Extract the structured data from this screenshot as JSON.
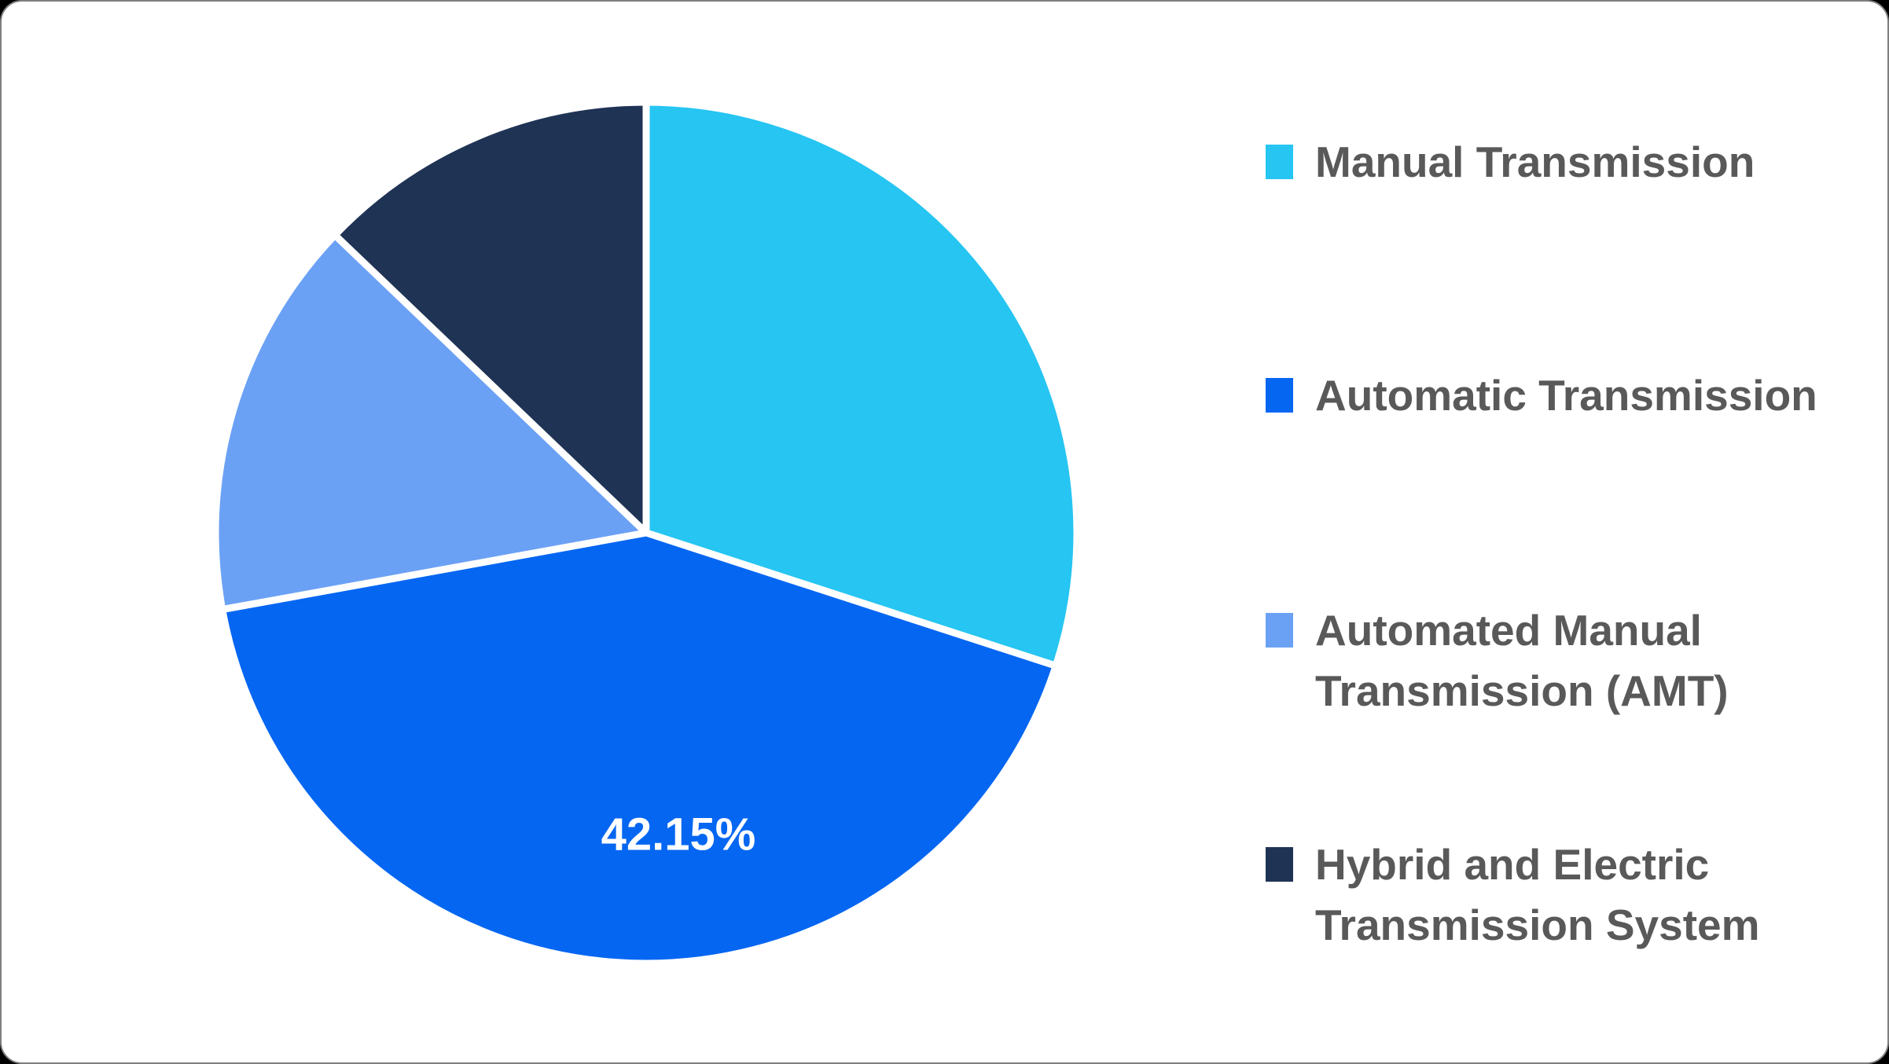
{
  "chart_data": {
    "type": "pie",
    "title": "",
    "categories": [
      "Manual Transmission",
      "Automatic Transmission",
      "Automated Manual Transmission (AMT)",
      "Hybrid and Electric Transmission System"
    ],
    "values": [
      30,
      42.15,
      15,
      12.85
    ],
    "unit": "percent",
    "colors": [
      "#26C5F2",
      "#0566F2",
      "#6BA1F5",
      "#1F3355"
    ],
    "data_labels": [
      "",
      "42.15%",
      "",
      ""
    ],
    "start_angle_deg": 0,
    "direction": "clockwise",
    "legend_position": "right",
    "slice_border_color": "#FFFFFF",
    "data_label_color": "#FFFFFF"
  },
  "legend": {
    "text_color": "#595959",
    "items": [
      {
        "line1": "Manual Transmission",
        "line2": ""
      },
      {
        "line1": "Automatic Transmission",
        "line2": ""
      },
      {
        "line1": "Automated Manual",
        "line2": "Transmission (AMT)"
      },
      {
        "line1": "Hybrid and Electric",
        "line2": "Transmission System"
      }
    ]
  },
  "canvas": {
    "background": "#FFFFFF",
    "border_color": "#7F7F7F"
  }
}
